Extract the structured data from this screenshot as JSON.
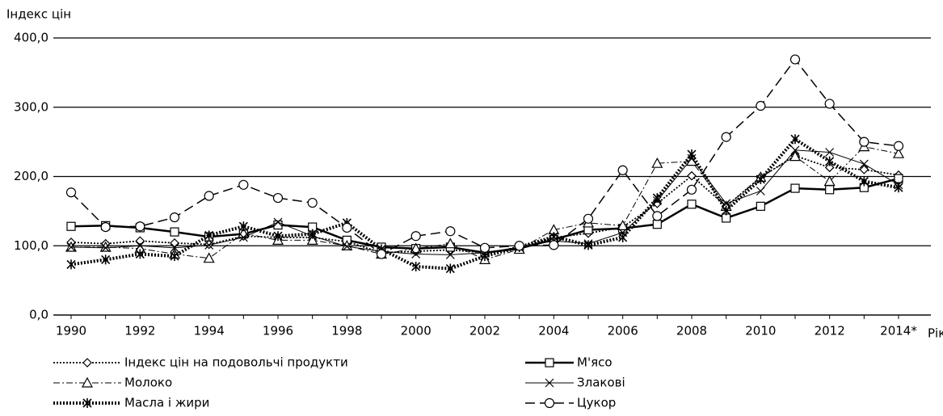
{
  "chart_data": {
    "type": "line",
    "y_label": "Індекс цін",
    "x_label": "Рік",
    "categories": [
      "1990",
      null,
      "1992",
      null,
      "1994",
      null,
      "1996",
      null,
      "1998",
      null,
      "2000",
      null,
      "2002",
      null,
      "2004",
      null,
      "2006",
      null,
      "2008",
      null,
      "2010",
      null,
      "2012",
      null,
      "2014*"
    ],
    "ylim": [
      0,
      400
    ],
    "yticks": [
      {
        "value": 0,
        "label": "0,0"
      },
      {
        "value": 100,
        "label": "100,0"
      },
      {
        "value": 200,
        "label": "200,0"
      },
      {
        "value": 300,
        "label": "300,0"
      },
      {
        "value": 400,
        "label": "400,0"
      }
    ],
    "grid": true,
    "series": [
      {
        "name": "Індекс цін на подовольчі продукти",
        "color": "#000000",
        "dash": "2,2",
        "width": 1.8,
        "marker": "diamond",
        "values": [
          105,
          103,
          107,
          104,
          102,
          114,
          112,
          112,
          106,
          90,
          92,
          94,
          90,
          97,
          112,
          118,
          127,
          161,
          201,
          157,
          199,
          230,
          213,
          210,
          202
        ]
      },
      {
        "name": "М'ясо",
        "color": "#000000",
        "dash": "none",
        "width": 2.5,
        "marker": "square",
        "values": [
          128,
          129,
          126,
          120,
          113,
          117,
          130,
          127,
          108,
          98,
          96,
          98,
          90,
          96,
          109,
          123,
          125,
          131,
          160,
          140,
          157,
          183,
          181,
          184,
          197
        ]
      },
      {
        "name": "Молоко",
        "color": "#000000",
        "dash": "8,3,2,3",
        "width": 1,
        "marker": "triangle",
        "values": [
          98,
          98,
          96,
          88,
          82,
          118,
          108,
          108,
          100,
          88,
          96,
          103,
          80,
          95,
          123,
          133,
          129,
          219,
          222,
          157,
          199,
          229,
          193,
          243,
          233
        ]
      },
      {
        "name": "Злакові",
        "color": "#000000",
        "dash": "none",
        "width": 1,
        "marker": "cross",
        "values": [
          98,
          97,
          100,
          97,
          101,
          112,
          134,
          114,
          99,
          92,
          88,
          87,
          90,
          98,
          107,
          103,
          119,
          165,
          226,
          161,
          179,
          238,
          235,
          218,
          188
        ]
      },
      {
        "name": "Масла і жири",
        "color": "#000000",
        "dash": "2,2",
        "width": 4,
        "marker": "star",
        "values": [
          73,
          80,
          88,
          85,
          115,
          128,
          114,
          117,
          133,
          95,
          70,
          67,
          85,
          98,
          113,
          101,
          112,
          169,
          232,
          151,
          196,
          254,
          222,
          193,
          184
        ]
      },
      {
        "name": "Цукор",
        "color": "#000000",
        "dash": "12,6",
        "width": 1.5,
        "marker": "circle",
        "values": [
          177,
          127,
          128,
          141,
          172,
          188,
          169,
          162,
          126,
          88,
          114,
          121,
          97,
          100,
          101,
          139,
          209,
          143,
          181,
          257,
          302,
          369,
          305,
          250,
          244
        ]
      }
    ]
  }
}
